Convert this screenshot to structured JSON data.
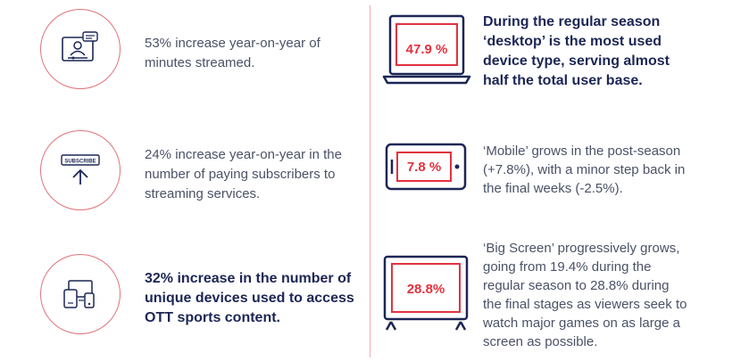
{
  "colors": {
    "accent": "#e2323f",
    "navy": "#1c2655",
    "text": "#4a5266",
    "circle": "#e0737b"
  },
  "left": {
    "items": [
      {
        "icon": "streaming-screen-icon",
        "text": "53% increase year-on-year of minutes streamed.",
        "lines": [
          "53% increase year-on-year of",
          "minutes streamed."
        ]
      },
      {
        "icon": "subscribe-icon",
        "badge": "SUBSCRIBE",
        "lines": [
          "24% increase year-on-year in the",
          "number of paying subscribers to",
          "streaming services."
        ]
      },
      {
        "icon": "multi-device-icon",
        "lines": [
          "32% increase in the number of",
          "unique devices used to access",
          "OTT sports content."
        ]
      }
    ]
  },
  "right": {
    "items": [
      {
        "icon": "laptop-icon",
        "value": "47.9 %",
        "lines": [
          "During the regular season",
          "‘desktop’ is the most used",
          "device type, serving almost",
          "half the total user base."
        ]
      },
      {
        "icon": "mobile-icon",
        "value": "7.8 %",
        "lines": [
          "‘Mobile’ grows in the post-season",
          "(+7.8%), with a minor step back in",
          "the final weeks (-2.5%)."
        ]
      },
      {
        "icon": "tv-icon",
        "value": "28.8%",
        "lines": [
          "‘Big Screen’ progressively grows,",
          "going from 19.4% during the",
          "regular season to 28.8% during",
          "the final stages as viewers seek to",
          "watch major games on as large a",
          "screen as possible."
        ]
      }
    ]
  }
}
